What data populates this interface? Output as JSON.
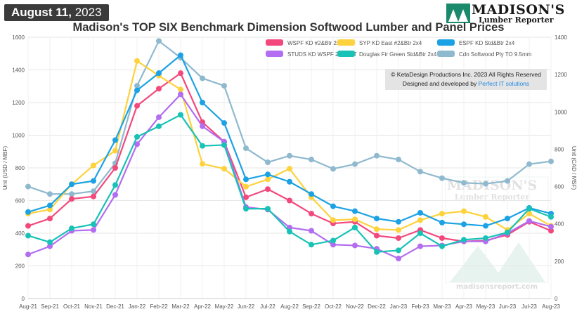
{
  "header": {
    "date_month_day": "August 11,",
    "date_year": "2023",
    "logo_name": "MADISON'S",
    "logo_sub": "Lumber Reporter",
    "title": "Madison's TOP SIX Benchmark Dimension Softwood Lumber and Panel Prices"
  },
  "copyright": {
    "line1": "© KetaDesign Productions Inc. 2023 All Rights Reserved",
    "line2_prefix": "Designed and developed by ",
    "line2_link": "Perfect IT solutions"
  },
  "watermark": {
    "name": "MADISON'S",
    "sub": "Lumber Reporter",
    "url": "madisonsreport.com"
  },
  "chart_data": {
    "type": "line",
    "categories": [
      "Aug-21",
      "Sep-21",
      "Oct-21",
      "Nov-21",
      "Dec-21",
      "Jan-22",
      "Feb-22",
      "Mar-22",
      "Apr-22",
      "May-22",
      "Jun-22",
      "Jul-22",
      "Aug-22",
      "Sep-22",
      "Oct-22",
      "Nov-22",
      "Dec-22",
      "Jan-23",
      "Feb-23",
      "Mar-23",
      "Apr-23",
      "May-23",
      "Jun-23",
      "Jul-23",
      "Aug-23"
    ],
    "ylabel_left": "Unit (USD / MBF)",
    "ylabel_right": "Unit (CAD / MSF)",
    "ylim_left": [
      0,
      1600
    ],
    "yticks_left": [
      0,
      200,
      400,
      600,
      800,
      1000,
      1200,
      1400,
      1600
    ],
    "ylim_right": [
      0,
      1400
    ],
    "yticks_right": [
      0,
      200,
      400,
      600,
      800,
      1000,
      1200,
      1400
    ],
    "grid": true,
    "legend_position": "top-right",
    "series": [
      {
        "name": "WSPF KD #2&Btr 2x4",
        "color": "#f3487c",
        "axis": "left",
        "values": [
          445,
          490,
          610,
          625,
          800,
          1180,
          1285,
          1380,
          1080,
          960,
          620,
          670,
          600,
          520,
          460,
          470,
          385,
          370,
          420,
          370,
          350,
          355,
          390,
          470,
          415
        ]
      },
      {
        "name": "SYP KD East #2&Btr 2x4",
        "color": "#fdd23c",
        "axis": "left",
        "values": [
          520,
          545,
          700,
          815,
          905,
          1455,
          1365,
          1280,
          825,
          795,
          685,
          730,
          795,
          620,
          480,
          485,
          425,
          420,
          480,
          520,
          535,
          500,
          420,
          520,
          445
        ]
      },
      {
        "name": "ESPF KD Std&Btr 2x4",
        "color": "#1ba2e4",
        "axis": "left",
        "values": [
          530,
          570,
          700,
          720,
          970,
          1275,
          1380,
          1490,
          1200,
          1075,
          730,
          760,
          715,
          640,
          565,
          535,
          490,
          470,
          525,
          465,
          455,
          445,
          490,
          555,
          520
        ]
      },
      {
        "name": "STUDS KD WSPF 2x4 PET",
        "color": "#b26df0",
        "axis": "left",
        "values": [
          270,
          320,
          415,
          420,
          635,
          945,
          1110,
          1250,
          1055,
          960,
          560,
          545,
          435,
          415,
          330,
          325,
          305,
          245,
          320,
          325,
          350,
          350,
          400,
          475,
          440
        ]
      },
      {
        "name": "Douglas Fir Green Std&Btr 2x4",
        "color": "#18c2b6",
        "axis": "left",
        "values": [
          385,
          345,
          430,
          455,
          695,
          990,
          1055,
          1125,
          935,
          940,
          550,
          550,
          410,
          330,
          355,
          435,
          285,
          295,
          400,
          320,
          360,
          370,
          405,
          550,
          500
        ]
      },
      {
        "name": "Cdn Softwood Ply TO 9.5mm",
        "color": "#8fb9ce",
        "axis": "right",
        "values": [
          600,
          560,
          560,
          575,
          725,
          1140,
          1380,
          1290,
          1180,
          1140,
          805,
          730,
          765,
          745,
          695,
          720,
          765,
          745,
          680,
          645,
          620,
          615,
          630,
          720,
          735
        ]
      }
    ]
  }
}
